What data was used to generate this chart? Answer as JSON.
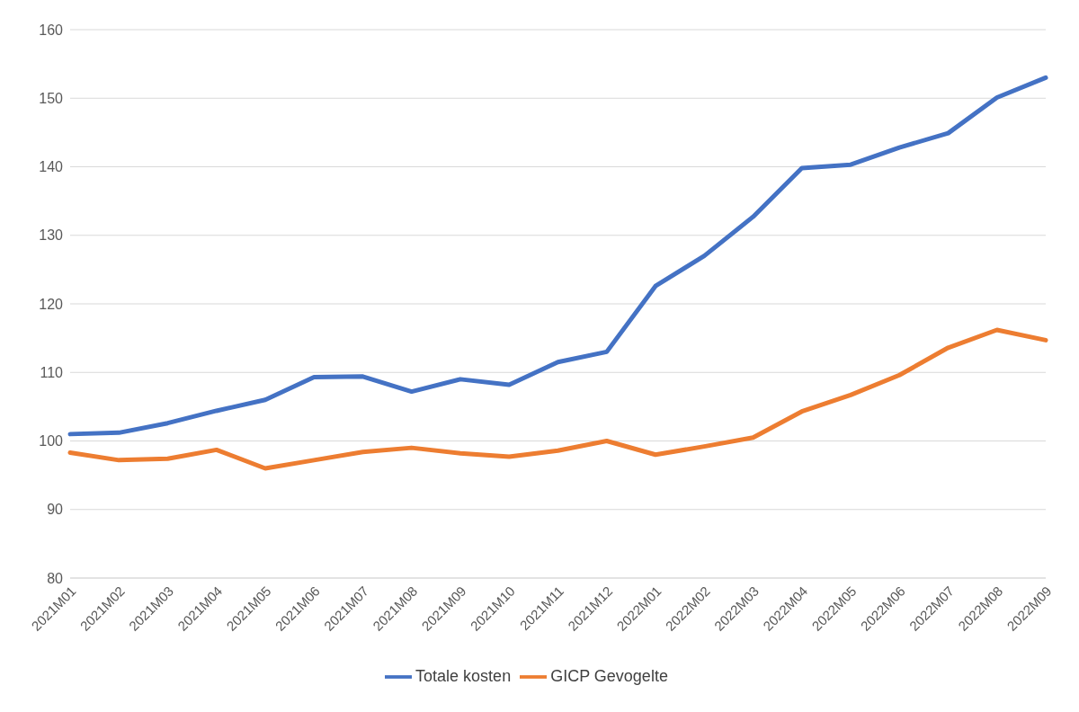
{
  "chart_data": {
    "type": "line",
    "categories": [
      "2021M01",
      "2021M02",
      "2021M03",
      "2021M04",
      "2021M05",
      "2021M06",
      "2021M07",
      "2021M08",
      "2021M09",
      "2021M10",
      "2021M11",
      "2021M12",
      "2022M01",
      "2022M02",
      "2022M03",
      "2022M04",
      "2022M05",
      "2022M06",
      "2022M07",
      "2022M08",
      "2022M09"
    ],
    "series": [
      {
        "name": "Totale kosten",
        "color": "#4472c4",
        "values": [
          101.0,
          101.2,
          102.6,
          104.4,
          106.0,
          109.3,
          109.4,
          107.2,
          109.0,
          108.2,
          111.5,
          113.0,
          122.6,
          127.0,
          132.7,
          139.8,
          140.3,
          142.8,
          144.9,
          150.1,
          153.0
        ]
      },
      {
        "name": "GICP Gevogelte",
        "color": "#ed7d31",
        "values": [
          98.3,
          97.2,
          97.4,
          98.7,
          96.0,
          97.2,
          98.4,
          99.0,
          98.2,
          97.7,
          98.6,
          100.0,
          98.0,
          99.2,
          100.5,
          104.3,
          106.7,
          109.6,
          113.6,
          116.2,
          114.7
        ]
      }
    ],
    "ylim": [
      80,
      160
    ],
    "yticks": [
      80,
      90,
      100,
      110,
      120,
      130,
      140,
      150,
      160
    ],
    "grid": "y",
    "legend": "bottom",
    "marker": "none",
    "line_style": "solid"
  }
}
